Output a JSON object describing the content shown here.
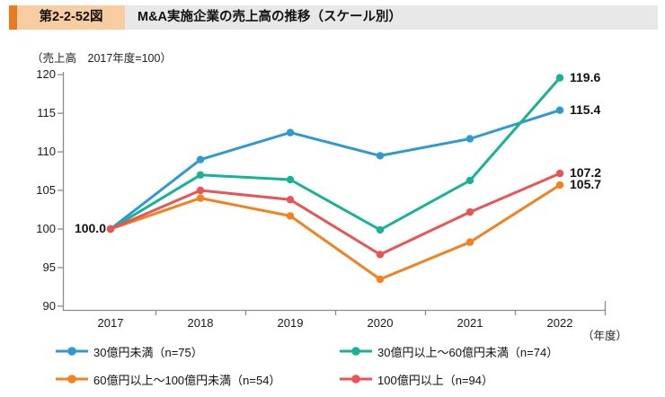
{
  "header": {
    "fig_no": "第2-2-52図",
    "title": "M&A実施企業の売上高の推移（スケール別）"
  },
  "chart_data": {
    "type": "line",
    "title": "M&A実施企業の売上高の推移（スケール別）",
    "unit_label": "（売上高　2017年度=100）",
    "x_axis_label": "（年度）",
    "categories": [
      "2017",
      "2018",
      "2019",
      "2020",
      "2021",
      "2022"
    ],
    "y_ticks": [
      90,
      95,
      100,
      105,
      110,
      115,
      120
    ],
    "ylim": [
      90,
      120
    ],
    "grid": false,
    "legend_position": "bottom",
    "start_label": "100.0",
    "series": [
      {
        "name": "30億円未満（n=75）",
        "color": "#2E9BD0",
        "values": [
          100.0,
          109.0,
          112.5,
          109.5,
          111.7,
          115.4
        ],
        "end_label": "115.4"
      },
      {
        "name": "30億円以上〜60億円未満（n=74）",
        "color": "#17B394",
        "values": [
          100.0,
          107.0,
          106.4,
          99.9,
          106.3,
          119.6
        ],
        "end_label": "119.6"
      },
      {
        "name": "60億円以上〜100億円未満（n=54）",
        "color": "#F5801E",
        "values": [
          100.0,
          104.0,
          101.7,
          93.5,
          98.3,
          105.7
        ],
        "end_label": "105.7"
      },
      {
        "name": "100億円以上（n=94）",
        "color": "#EA5456",
        "values": [
          100.0,
          105.0,
          103.8,
          96.7,
          102.2,
          107.2
        ],
        "end_label": "107.2"
      }
    ],
    "axis_color": "#8C8C8C"
  }
}
